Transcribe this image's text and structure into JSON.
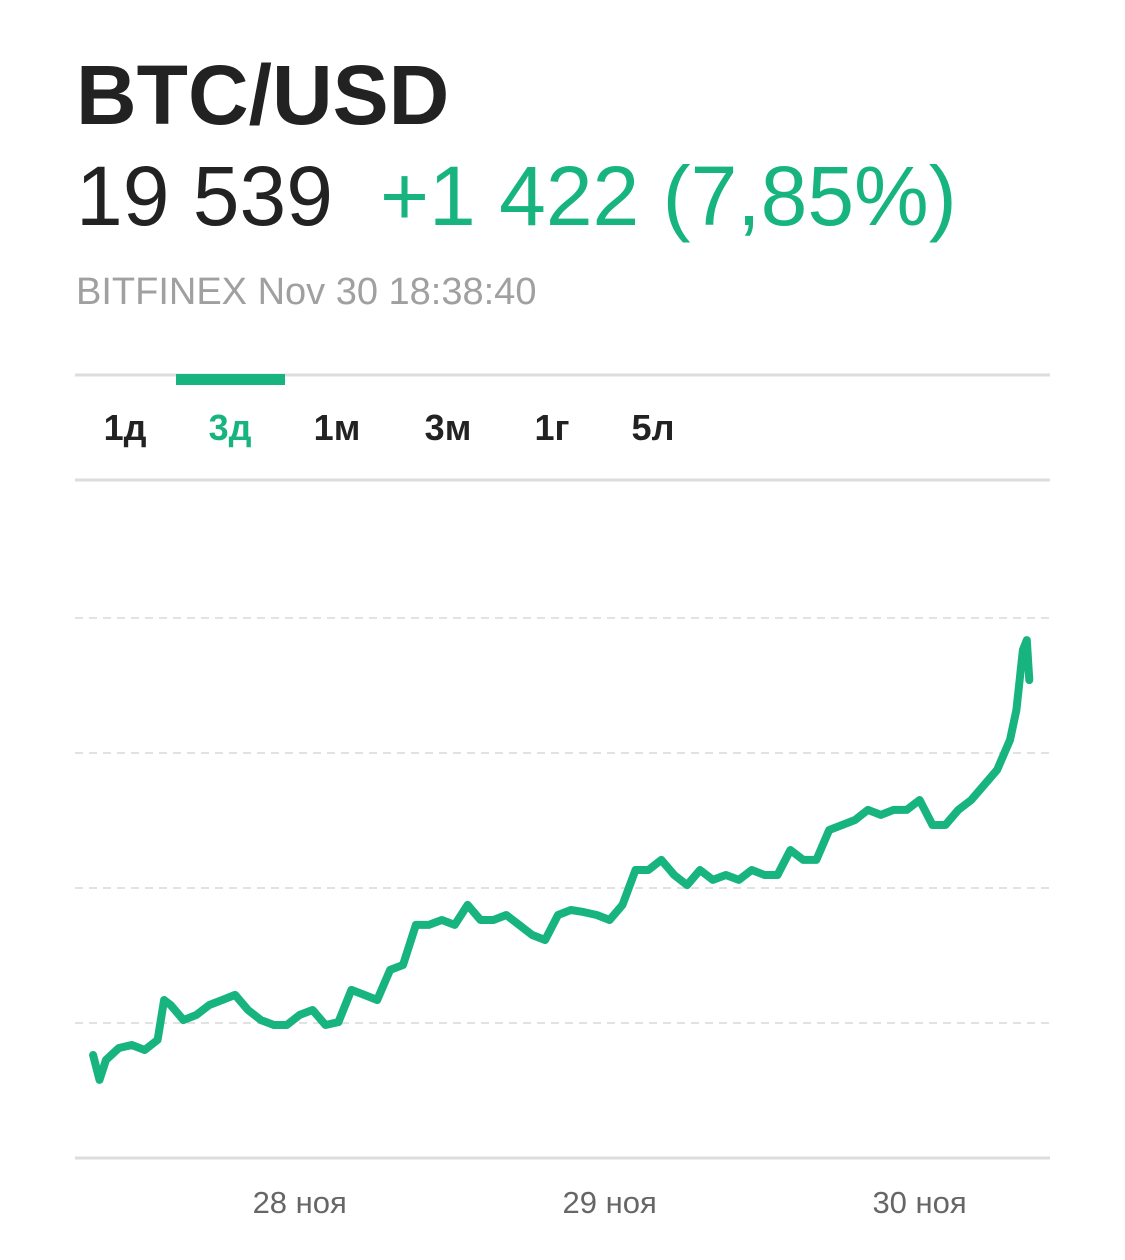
{
  "header": {
    "title": "BTC/USD",
    "price": "19 539",
    "change": "+1 422 (7,85%)",
    "source_time": "BITFINEX Nov 30 18:38:40"
  },
  "tabs": {
    "items": [
      "1д",
      "3д",
      "1м",
      "3м",
      "1г",
      "5л"
    ],
    "active": 1
  },
  "chart_data": {
    "type": "line",
    "x": [
      -16,
      -15.5,
      -15,
      -14,
      -13,
      -12,
      -11,
      -10.5,
      -10,
      -9,
      -8,
      -7,
      -6,
      -5,
      -4,
      -3,
      -2,
      -1,
      0,
      1,
      2,
      3,
      4,
      5,
      6,
      7,
      8,
      9,
      10,
      11,
      12,
      13,
      14,
      15,
      16,
      17,
      18,
      19,
      20,
      21,
      22,
      23,
      24,
      25,
      26,
      27,
      28,
      29,
      30,
      31,
      32,
      33,
      34,
      35,
      36,
      37,
      38,
      39,
      40,
      41,
      42,
      43,
      44,
      45,
      46,
      47,
      48,
      49,
      50,
      51,
      52,
      53,
      54,
      55,
      55.5,
      56,
      56.3,
      56.5
    ],
    "series": [
      {
        "name": "BTC/USD",
        "color": "#17b47f",
        "values": [
          17858,
          17747,
          17836,
          17889,
          17902,
          17880,
          17925,
          18102,
          18080,
          18013,
          18036,
          18080,
          18102,
          18125,
          18058,
          18013,
          17991,
          17991,
          18036,
          18058,
          17991,
          18004,
          18147,
          18125,
          18102,
          18236,
          18258,
          18436,
          18436,
          18458,
          18436,
          18525,
          18458,
          18458,
          18480,
          18436,
          18391,
          18369,
          18480,
          18502,
          18493,
          18480,
          18458,
          18525,
          18680,
          18680,
          18725,
          18658,
          18613,
          18680,
          18636,
          18658,
          18636,
          18680,
          18658,
          18658,
          18769,
          18725,
          18725,
          18858,
          18880,
          18902,
          18947,
          18925,
          18947,
          18947,
          18991,
          18880,
          18880,
          18947,
          18991,
          19058,
          19125,
          19258,
          19391,
          19658,
          19702,
          19524
        ]
      }
    ],
    "xlim": [
      -17.4,
      58.1
    ],
    "xticks": [
      {
        "value": 0,
        "label": "28 ноя"
      },
      {
        "value": 24,
        "label": "29 ноя"
      },
      {
        "value": 48,
        "label": "30 ноя"
      }
    ],
    "ylim": [
      17400,
      19800
    ],
    "yticks": [
      17400,
      18000,
      18600,
      19200,
      19800
    ],
    "grid": true
  }
}
